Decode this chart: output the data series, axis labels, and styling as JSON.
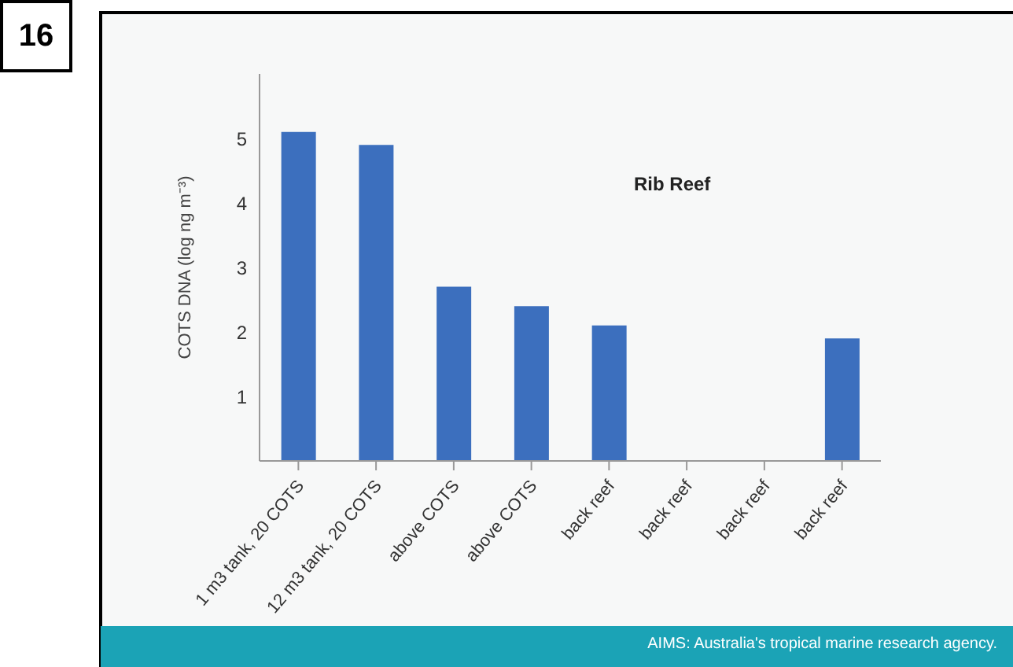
{
  "chart_data": {
    "type": "bar",
    "title": "Rib Reef",
    "ylabel": "COTS DNA (log ng m⁻³)",
    "categories": [
      "1 m3 tank, 20 COTS",
      "12 m3 tank, 20 COTS",
      "above COTS",
      "above COTS",
      "back reef",
      "back reef",
      "back reef",
      "back reef"
    ],
    "values": [
      5.1,
      4.9,
      2.7,
      2.4,
      2.1,
      null,
      null,
      1.9
    ],
    "color": "#3c6fbe",
    "ylim": [
      0,
      6
    ],
    "yticks": [
      1,
      2,
      3,
      4,
      5
    ],
    "annotations": [
      "16",
      "AIMS: Australia's tropical marine research agency."
    ]
  }
}
